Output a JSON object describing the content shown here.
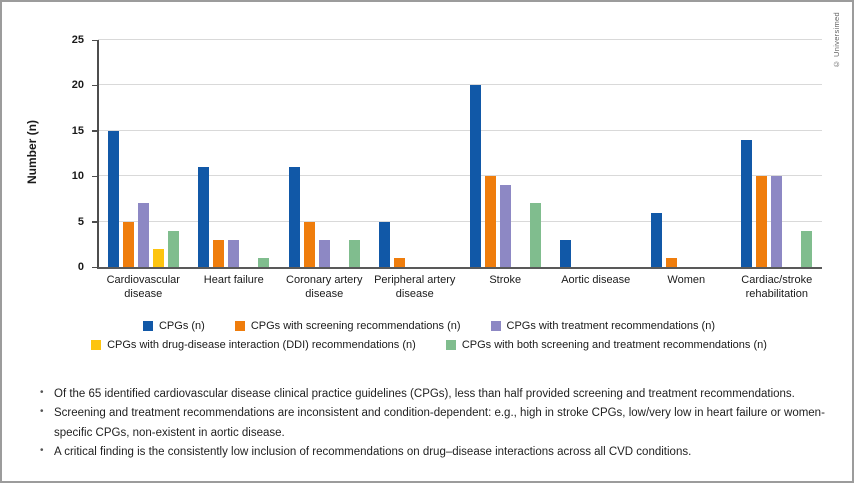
{
  "copyright": "© Universimed",
  "chart_data": {
    "type": "bar",
    "title": "",
    "xlabel": "",
    "ylabel": "Number (n)",
    "ylim": [
      0,
      25
    ],
    "yticks": [
      0,
      5,
      10,
      15,
      20,
      25
    ],
    "grid": true,
    "legend_position": "bottom",
    "categories": [
      "Cardiovascular disease",
      "Heart failure",
      "Coronary artery disease",
      "Peripheral artery disease",
      "Stroke",
      "Aortic disease",
      "Women",
      "Cardiac/stroke rehabilitation"
    ],
    "series": [
      {
        "name": "CPGs (n)",
        "color": "#1158a7",
        "values": [
          15,
          11,
          11,
          5,
          20,
          3,
          6,
          14
        ]
      },
      {
        "name": "CPGs with screening recommendations (n)",
        "color": "#ef7d0c",
        "values": [
          5,
          3,
          5,
          1,
          10,
          0,
          1,
          10
        ]
      },
      {
        "name": "CPGs with treatment recommendations (n)",
        "color": "#8d88c4",
        "values": [
          7,
          3,
          3,
          0,
          9,
          0,
          0,
          10
        ]
      },
      {
        "name": "CPGs with drug-disease interaction (DDI) recommendations (n)",
        "color": "#fdc40f",
        "values": [
          2,
          0,
          0,
          0,
          0,
          0,
          0,
          0
        ]
      },
      {
        "name": "CPGs with both screening and treatment recommendations (n)",
        "color": "#80bd8e",
        "values": [
          4,
          1,
          3,
          0,
          7,
          0,
          0,
          4
        ]
      }
    ]
  },
  "notes": [
    "Of the 65 identified cardiovascular disease clinical practice guidelines (CPGs), less than half provided screening and treatment recommendations.",
    "Screening and treatment recommendations are inconsistent and condition-dependent: e.g., high in stroke CPGs, low/very low in heart failure or women-specific CPGs, non-existent in aortic disease.",
    "A critical finding is the consistently low inclusion of recommendations on drug–disease interactions across all CVD conditions."
  ]
}
